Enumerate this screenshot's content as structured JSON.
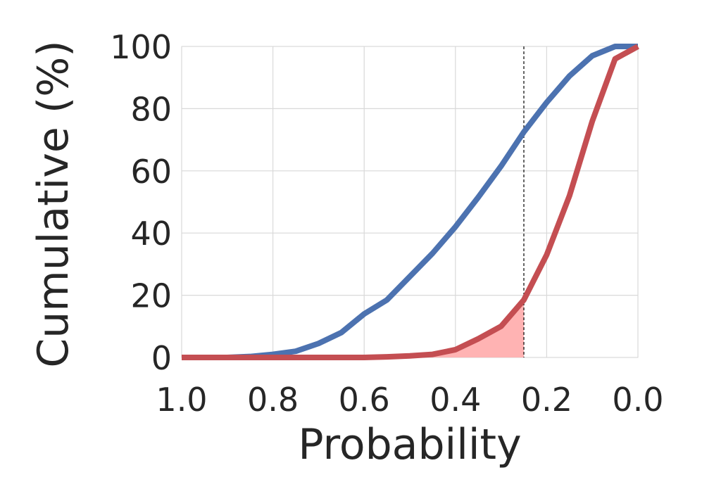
{
  "chart_data": {
    "type": "line",
    "x_label": "Probability",
    "y_label": "Cumulative (%)",
    "x": [
      1.0,
      0.95,
      0.9,
      0.85,
      0.8,
      0.75,
      0.7,
      0.65,
      0.6,
      0.55,
      0.5,
      0.45,
      0.4,
      0.35,
      0.3,
      0.25,
      0.2,
      0.15,
      0.1,
      0.05,
      0.0
    ],
    "series": [
      {
        "color": "#4c72b0",
        "values": [
          0,
          0,
          0,
          0.3,
          1,
          2,
          4.5,
          8,
          14,
          18.5,
          26,
          33.5,
          42,
          51.5,
          61.5,
          72.5,
          82,
          90.5,
          97,
          100,
          100
        ]
      },
      {
        "color": "#c44e52",
        "fill_color": "#ffb3b3",
        "values": [
          0,
          0,
          0,
          0,
          0,
          0,
          0,
          0,
          0,
          0.2,
          0.5,
          1,
          2.5,
          6,
          10,
          18.5,
          33,
          52,
          76,
          96,
          100
        ]
      }
    ],
    "threshold": 0.25,
    "xlim": [
      1.0,
      0.0
    ],
    "xticks": [
      {
        "value": 1.0,
        "label": "1.0"
      },
      0.8,
      0.6,
      0.4,
      0.2,
      {
        "value": 0.0,
        "label": "0.0"
      }
    ],
    "ylim": [
      0,
      100
    ],
    "yticks": [
      0,
      20,
      40,
      60,
      80,
      100
    ],
    "grid": true
  }
}
